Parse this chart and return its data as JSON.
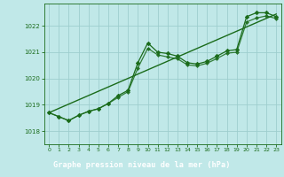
{
  "title": "Graphe pression niveau de la mer (hPa)",
  "bg_color": "#c0e8e8",
  "plot_bg_color": "#c0e8e8",
  "footer_bg_color": "#1a6b1a",
  "footer_text_color": "#ffffff",
  "grid_color": "#9ecece",
  "line_color": "#1a6b1a",
  "marker_color": "#1a6b1a",
  "xlim": [
    -0.5,
    23.5
  ],
  "ylim": [
    1017.5,
    1022.85
  ],
  "yticks": [
    1018,
    1019,
    1020,
    1021,
    1022
  ],
  "xticks": [
    0,
    1,
    2,
    3,
    4,
    5,
    6,
    7,
    8,
    9,
    10,
    11,
    12,
    13,
    14,
    15,
    16,
    17,
    18,
    19,
    20,
    21,
    22,
    23
  ],
  "tick_color": "#1a6b1a",
  "axis_color": "#1a6b1a",
  "series1_x": [
    0,
    1,
    2,
    3,
    4,
    5,
    6,
    7,
    8,
    9,
    10,
    11,
    12,
    13,
    14,
    15,
    16,
    17,
    18,
    19,
    20,
    21,
    22,
    23
  ],
  "series1_y": [
    1018.7,
    1018.55,
    1018.4,
    1018.6,
    1018.75,
    1018.85,
    1019.05,
    1019.35,
    1019.55,
    1020.6,
    1021.35,
    1021.0,
    1020.95,
    1020.85,
    1020.6,
    1020.55,
    1020.65,
    1020.85,
    1021.05,
    1021.1,
    1022.35,
    1022.5,
    1022.5,
    1022.35
  ],
  "series2_y": [
    1018.7,
    1018.55,
    1018.4,
    1018.6,
    1018.75,
    1018.85,
    1019.05,
    1019.28,
    1019.5,
    1020.4,
    1021.15,
    1020.9,
    1020.82,
    1020.75,
    1020.52,
    1020.48,
    1020.58,
    1020.76,
    1020.96,
    1021.0,
    1022.15,
    1022.3,
    1022.38,
    1022.28
  ],
  "trend_x": [
    0,
    23
  ],
  "trend_y": [
    1018.7,
    1022.45
  ]
}
